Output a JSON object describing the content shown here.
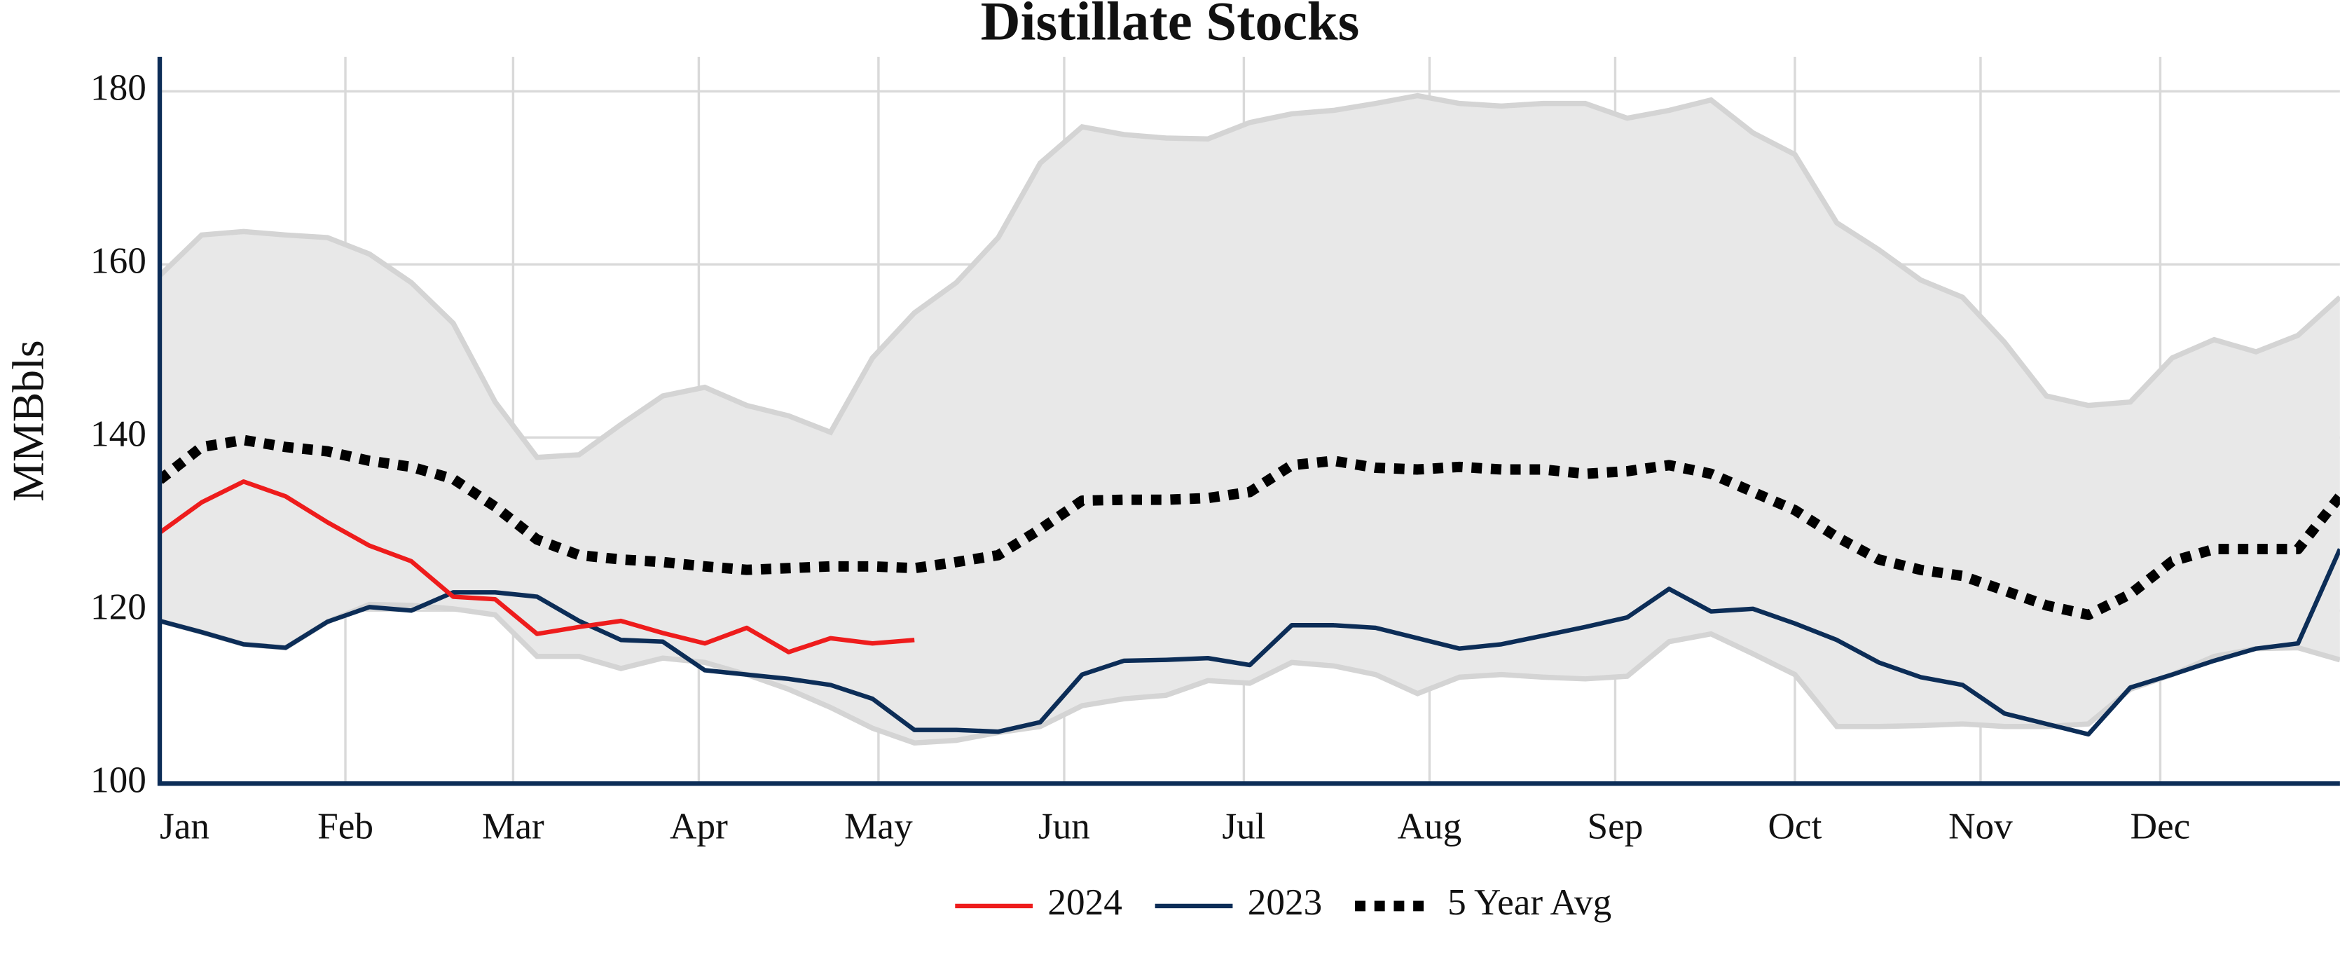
{
  "chart_data": {
    "type": "line",
    "title": "Distillate Stocks",
    "y_label": "MMBbls",
    "x": [
      0,
      7,
      14,
      21,
      28,
      35,
      42,
      49,
      56,
      63,
      70,
      77,
      84,
      91,
      98,
      105,
      112,
      119,
      126,
      133,
      140,
      147,
      154,
      161,
      168,
      175,
      182,
      189,
      196,
      203,
      210,
      217,
      224,
      231,
      238,
      245,
      252,
      259,
      266,
      273,
      280,
      287,
      294,
      301,
      308,
      315,
      322,
      329,
      336,
      343,
      350,
      357,
      364
    ],
    "xlim": [
      0,
      364
    ],
    "xticks": [
      {
        "value": 0,
        "label": "Jan"
      },
      {
        "value": 31,
        "label": "Feb"
      },
      {
        "value": 59,
        "label": "Mar"
      },
      {
        "value": 90,
        "label": "Apr"
      },
      {
        "value": 120,
        "label": "May"
      },
      {
        "value": 151,
        "label": "Jun"
      },
      {
        "value": 181,
        "label": "Jul"
      },
      {
        "value": 212,
        "label": "Aug"
      },
      {
        "value": 243,
        "label": "Sep"
      },
      {
        "value": 273,
        "label": "Oct"
      },
      {
        "value": 304,
        "label": "Nov"
      },
      {
        "value": 334,
        "label": "Dec"
      }
    ],
    "ylim": [
      100,
      184
    ],
    "yticks": [
      100,
      120,
      140,
      160,
      180
    ],
    "grid": true,
    "legend": "bottom",
    "band": {
      "color": "#e8e8e8",
      "edge_color": "#d4d4d4",
      "upper": [
        158.7,
        163.4,
        163.8,
        163.4,
        163.1,
        161.2,
        157.9,
        153.2,
        144.1,
        137.7,
        138.0,
        141.5,
        144.8,
        145.8,
        143.7,
        142.5,
        140.6,
        149.2,
        154.4,
        157.9,
        163.1,
        171.7,
        175.9,
        175.0,
        174.6,
        174.5,
        176.4,
        177.4,
        177.8,
        178.6,
        179.5,
        178.6,
        178.3,
        178.6,
        178.6,
        176.9,
        177.8,
        179.0,
        175.2,
        172.7,
        164.8,
        161.7,
        158.2,
        156.2,
        151.0,
        144.8,
        143.7,
        144.1,
        149.2,
        151.3,
        149.9,
        151.8,
        156.2
      ],
      "lower": [
        118.8,
        117.5,
        116.1,
        115.7,
        118.7,
        120.7,
        120.6,
        120.2,
        119.5,
        114.7,
        114.7,
        113.3,
        114.5,
        114.0,
        112.6,
        110.9,
        108.8,
        106.4,
        104.7,
        105.0,
        105.9,
        106.6,
        109.0,
        109.8,
        110.2,
        111.9,
        111.6,
        114.0,
        113.6,
        112.6,
        110.4,
        112.3,
        112.6,
        112.3,
        112.1,
        112.4,
        116.4,
        117.3,
        115.0,
        112.6,
        106.6,
        106.6,
        106.7,
        106.9,
        106.6,
        106.6,
        106.9,
        110.9,
        112.6,
        114.7,
        115.6,
        115.7,
        114.3
      ]
    },
    "series": [
      {
        "name": "2024",
        "color": "#ee1c1c",
        "dash": "solid",
        "values": [
          129.0,
          132.5,
          134.9,
          133.2,
          130.2,
          127.5,
          125.7,
          121.6,
          121.3,
          117.3,
          118.1,
          118.8,
          117.4,
          116.2,
          118.0,
          115.2,
          116.8,
          116.2,
          116.6,
          null,
          null,
          null,
          null,
          null,
          null,
          null,
          null,
          null,
          null,
          null,
          null,
          null,
          null,
          null,
          null,
          null,
          null,
          null,
          null,
          null,
          null,
          null,
          null,
          null,
          null,
          null,
          null,
          null,
          null,
          null,
          null,
          null,
          null
        ]
      },
      {
        "name": "2023",
        "color": "#0c2d57",
        "dash": "solid",
        "values": [
          118.8,
          117.5,
          116.1,
          115.7,
          118.7,
          120.4,
          120.0,
          122.1,
          122.1,
          121.6,
          118.8,
          116.6,
          116.4,
          113.1,
          112.6,
          112.1,
          111.4,
          109.8,
          106.2,
          106.2,
          106.0,
          107.1,
          112.6,
          114.2,
          114.3,
          114.5,
          113.7,
          118.3,
          118.3,
          118.0,
          116.8,
          115.6,
          116.1,
          117.1,
          118.1,
          119.2,
          122.5,
          119.9,
          120.2,
          118.5,
          116.6,
          114.0,
          112.3,
          111.4,
          108.1,
          106.9,
          105.7,
          111.1,
          112.6,
          114.2,
          115.6,
          116.2,
          127.1
        ]
      },
      {
        "name": "5 Year Avg",
        "color": "#000000",
        "dash": "dotted",
        "values": [
          135.1,
          138.9,
          139.7,
          138.9,
          138.4,
          137.3,
          136.6,
          135.2,
          132.0,
          128.2,
          126.4,
          125.9,
          125.6,
          125.1,
          124.7,
          124.9,
          125.1,
          125.1,
          124.9,
          125.6,
          126.4,
          129.4,
          132.7,
          132.8,
          132.8,
          133.0,
          133.7,
          136.8,
          137.3,
          136.5,
          136.3,
          136.6,
          136.3,
          136.3,
          135.8,
          136.1,
          136.8,
          135.8,
          133.7,
          131.6,
          128.5,
          125.9,
          124.7,
          124.0,
          122.3,
          120.6,
          119.5,
          121.9,
          125.7,
          127.1,
          127.1,
          127.1,
          133.2
        ]
      }
    ]
  }
}
